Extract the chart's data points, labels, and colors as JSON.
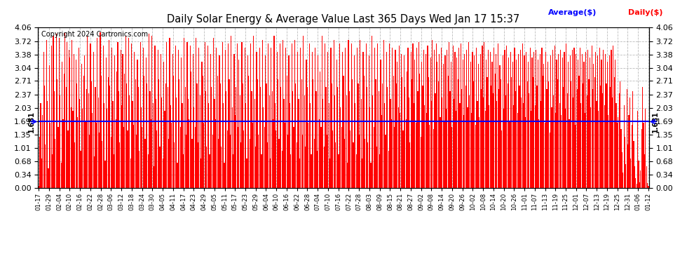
{
  "title": "Daily Solar Energy & Average Value Last 365 Days Wed Jan 17 15:37",
  "copyright": "Copyright 2024 Cartronics.com",
  "average_value": 1.681,
  "average_label": "1.681",
  "bar_color": "#ff0000",
  "average_color": "#0000ff",
  "background_color": "#ffffff",
  "grid_color": "#aaaaaa",
  "ylim": [
    0.0,
    4.06
  ],
  "yticks": [
    0.0,
    0.34,
    0.68,
    1.01,
    1.35,
    1.69,
    2.03,
    2.37,
    2.71,
    3.04,
    3.38,
    3.72,
    4.06
  ],
  "legend_average_color": "#0000ff",
  "legend_daily_color": "#ff0000",
  "x_tick_labels": [
    "01-17",
    "01-29",
    "02-04",
    "02-10",
    "02-16",
    "02-22",
    "02-28",
    "03-06",
    "03-12",
    "03-18",
    "03-24",
    "03-30",
    "04-05",
    "04-11",
    "04-17",
    "04-23",
    "04-29",
    "05-05",
    "05-11",
    "05-17",
    "05-23",
    "05-29",
    "06-04",
    "06-10",
    "06-16",
    "06-22",
    "06-28",
    "07-04",
    "07-10",
    "07-16",
    "07-22",
    "07-28",
    "08-03",
    "08-09",
    "08-15",
    "08-21",
    "08-27",
    "09-02",
    "09-08",
    "09-14",
    "09-20",
    "09-26",
    "10-02",
    "10-08",
    "10-14",
    "10-20",
    "10-26",
    "11-01",
    "11-07",
    "11-13",
    "11-19",
    "11-25",
    "12-01",
    "12-07",
    "12-13",
    "12-19",
    "12-25",
    "12-31",
    "01-06",
    "01-12"
  ],
  "daily_values": [
    0.05,
    1.3,
    2.15,
    0.75,
    1.85,
    3.45,
    2.6,
    1.1,
    3.75,
    2.2,
    0.5,
    3.1,
    1.65,
    3.6,
    0.85,
    3.85,
    2.45,
    1.25,
    3.9,
    2.75,
    1.55,
    3.8,
    2.35,
    0.65,
    3.2,
    1.75,
    2.9,
    3.95,
    2.55,
    3.7,
    1.45,
    3.5,
    3.3,
    2.05,
    3.75,
    1.95,
    3.4,
    1.15,
    3.25,
    2.65,
    1.8,
    3.55,
    2.25,
    0.95,
    3.15,
    2.0,
    2.85,
    3.35,
    1.7,
    2.5,
    3.85,
    2.4,
    1.35,
    3.65,
    2.7,
    1.9,
    3.45,
    0.8,
    2.55,
    1.65,
    3.8,
    2.3,
    1.4,
    3.95,
    2.85,
    1.2,
    3.6,
    2.15,
    0.7,
    3.3,
    2.0,
    2.8,
    3.75,
    2.6,
    1.3,
    3.55,
    2.2,
    0.85,
    3.35,
    1.75,
    2.95,
    3.7,
    2.45,
    1.15,
    3.5,
    2.1,
    3.4,
    1.55,
    2.9,
    3.85,
    2.65,
    1.45,
    3.8,
    2.35,
    0.75,
    3.65,
    2.2,
    1.6,
    3.45,
    2.75,
    1.35,
    3.25,
    2.55,
    0.95,
    3.7,
    2.05,
    1.55,
    3.55,
    2.85,
    1.25,
    3.3,
    2.65,
    0.85,
    3.9,
    2.45,
    1.75,
    3.85,
    2.15,
    0.55,
    3.6,
    2.25,
    1.45,
    3.5,
    2.75,
    1.05,
    3.4,
    2.3,
    0.75,
    3.2,
    1.95,
    2.65,
    3.7,
    2.55,
    1.25,
    3.8,
    2.1,
    1.65,
    3.4,
    2.85,
    1.15,
    3.6,
    2.3,
    0.65,
    3.5,
    2.75,
    1.55,
    3.3,
    2.15,
    0.85,
    3.8,
    2.55,
    1.35,
    3.7,
    2.25,
    1.75,
    3.6,
    2.95,
    1.25,
    3.4,
    2.05,
    1.55,
    3.8,
    2.65,
    1.15,
    3.55,
    2.35,
    0.75,
    3.2,
    2.85,
    1.65,
    3.7,
    2.45,
    1.05,
    3.6,
    2.15,
    0.85,
    3.4,
    2.55,
    1.35,
    3.8,
    2.25,
    1.75,
    3.55,
    2.85,
    1.25,
    3.35,
    2.65,
    1.05,
    3.7,
    2.15,
    0.65,
    3.5,
    2.45,
    1.45,
    3.65,
    2.75,
    1.35,
    3.85,
    2.05,
    0.85,
    3.4,
    1.85,
    2.55,
    3.65,
    1.55,
    3.25,
    2.35,
    1.15,
    3.7,
    2.65,
    1.45,
    3.55,
    2.15,
    0.75,
    3.35,
    2.85,
    1.25,
    3.65,
    2.45,
    1.65,
    3.85,
    2.25,
    1.05,
    3.45,
    2.75,
    1.35,
    3.55,
    2.55,
    0.85,
    3.75,
    2.05,
    1.55,
    3.35,
    2.65,
    1.15,
    3.65,
    2.35,
    0.75,
    3.55,
    2.45,
    1.75,
    3.85,
    2.15,
    1.45,
    3.45,
    2.75,
    1.25,
    3.65,
    2.55,
    0.95,
    3.75,
    2.25,
    1.65,
    3.55,
    2.85,
    1.35,
    3.35,
    2.15,
    0.85,
    3.65,
    2.45,
    1.55,
    3.75,
    2.65,
    1.15,
    3.45,
    2.25,
    0.75,
    3.55,
    2.75,
    1.35,
    3.85,
    2.35,
    1.05,
    3.25,
    2.55,
    1.65,
    3.65,
    2.15,
    0.85,
    3.45,
    2.75,
    1.25,
    3.55,
    2.45,
    0.95,
    3.35,
    1.75,
    2.95,
    1.55,
    3.85,
    2.25,
    1.05,
    3.65,
    2.55,
    1.35,
    3.45,
    2.15,
    0.75,
    3.55,
    2.65,
    1.45,
    3.75,
    2.35,
    1.15,
    3.25,
    2.55,
    0.85,
    3.65,
    2.05,
    1.55,
    3.45,
    2.85,
    1.25,
    3.55,
    2.35,
    0.65,
    3.75,
    2.45,
    1.45,
    3.65,
    2.75,
    1.15,
    3.35,
    2.15,
    0.85,
    3.55,
    2.65,
    1.35,
    3.75,
    2.25,
    0.75,
    3.45,
    2.85,
    1.25,
    3.65,
    2.55,
    1.15,
    3.35,
    2.05,
    0.65,
    3.85,
    2.35,
    1.55,
    3.55,
    2.75,
    1.05,
    3.65,
    2.45,
    0.85,
    3.25,
    1.85,
    2.65,
    3.75,
    2.15,
    1.35,
    3.45,
    2.55,
    0.95,
    3.65,
    2.25,
    1.75,
    3.55,
    2.85,
    1.55,
    3.5,
    2.65,
    3.2,
    2.05,
    3.6,
    1.9,
    3.4,
    2.8,
    1.45,
    3.35,
    2.55,
    1.75,
    2.95,
    3.55,
    2.3,
    1.15,
    3.45,
    2.75,
    3.65,
    2.15,
    3.25,
    1.65,
    3.55,
    2.45,
    3.7,
    2.9,
    1.3,
    3.2,
    2.6,
    3.5,
    2.1,
    3.4,
    1.9,
    3.6,
    2.8,
    1.6,
    3.3,
    2.2,
    3.75,
    1.5,
    3.5,
    2.4,
    3.65,
    3.2,
    2.7,
    3.4,
    1.8,
    3.55,
    2.3,
    3.15,
    1.7,
    3.35,
    2.0,
    3.5,
    2.85,
    3.7,
    2.45,
    3.2,
    1.55,
    3.6,
    2.25,
    3.45,
    1.95,
    3.3,
    2.75,
    3.55,
    2.15,
    3.65,
    2.5,
    3.25,
    1.85,
    3.4,
    2.6,
    3.5,
    2.05,
    3.7,
    2.35,
    3.2,
    1.9,
    3.45,
    2.7,
    3.35,
    1.6,
    3.55,
    2.2,
    3.15,
    1.8,
    3.4,
    2.5,
    3.6,
    2.3,
    3.7,
    1.95,
    3.25,
    2.8,
    3.5,
    2.1,
    3.45,
    2.6,
    3.2,
    2.4,
    3.55,
    2.9,
    3.4,
    2.2,
    3.65,
    2.5,
    3.1,
    2.75,
    1.45,
    3.35,
    2.0,
    3.5,
    2.35,
    3.6,
    2.65,
    3.3,
    1.7,
    3.45,
    2.8,
    3.2,
    2.1,
    3.55,
    2.45,
    3.25,
    1.9,
    3.4,
    2.6,
    3.5,
    2.3,
    3.65,
    2.15,
    3.35,
    1.8,
    3.45,
    2.7,
    3.2,
    2.4,
    3.55,
    1.95,
    3.3,
    2.8,
    3.45,
    2.1,
    3.5,
    2.6,
    3.25,
    1.75,
    3.4,
    2.2,
    3.55,
    2.85,
    3.15,
    1.65,
    3.45,
    2.5,
    3.2,
    2.7,
    1.4,
    3.35,
    2.05,
    3.5,
    2.35,
    3.6,
    1.9,
    3.25,
    2.75,
    3.4,
    2.15,
    3.5,
    1.85,
    3.3,
    2.55,
    3.45,
    2.0,
    3.65,
    2.4,
    3.2,
    1.75,
    3.35,
    2.7,
    3.5,
    2.3,
    3.55,
    1.6,
    3.4,
    2.5,
    3.25,
    2.85,
    3.55,
    2.15,
    3.4,
    2.65,
    3.2,
    1.9,
    3.45,
    2.35,
    3.5,
    2.75,
    3.3,
    2.05,
    3.6,
    2.5,
    3.15,
    2.8,
    3.45,
    2.2,
    3.35,
    1.95,
    3.55,
    2.6,
    3.25,
    2.4,
    3.5,
    2.1,
    3.4,
    2.65,
    3.2,
    1.85,
    3.35,
    2.55,
    3.5,
    2.3,
    3.6,
    2.8,
    3.25,
    2.15,
    1.65,
    1.8,
    2.4,
    2.7,
    1.5,
    0.9,
    0.4,
    2.1,
    1.3,
    0.6,
    2.5,
    1.1,
    1.85,
    2.3,
    0.75,
    1.6,
    2.45,
    1.2,
    0.55,
    0.25,
    0.1,
    1.95,
    0.7,
    0.15,
    0.45,
    1.5,
    2.55,
    1.65,
    0.85,
    2.0,
    0.55,
    0.12,
    0.05
  ]
}
